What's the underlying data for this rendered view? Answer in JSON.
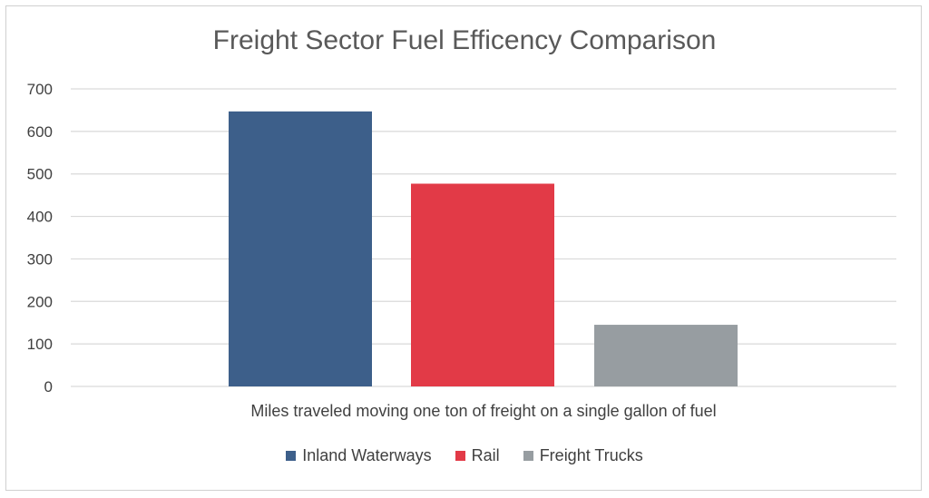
{
  "chart_data": {
    "type": "bar",
    "title": "Freight Sector Fuel Efficency Comparison",
    "xlabel": "Miles traveled moving one ton of freight on a single gallon of fuel",
    "ylabel": "",
    "ylim": [
      0,
      700
    ],
    "yticks": [
      0,
      100,
      200,
      300,
      400,
      500,
      600,
      700
    ],
    "grid": true,
    "legend_position": "bottom",
    "series": [
      {
        "name": "Inland Waterways",
        "value": 647,
        "color": "#3d5f8a"
      },
      {
        "name": "Rail",
        "value": 477,
        "color": "#e23a47"
      },
      {
        "name": "Freight Trucks",
        "value": 145,
        "color": "#979da1"
      }
    ]
  }
}
